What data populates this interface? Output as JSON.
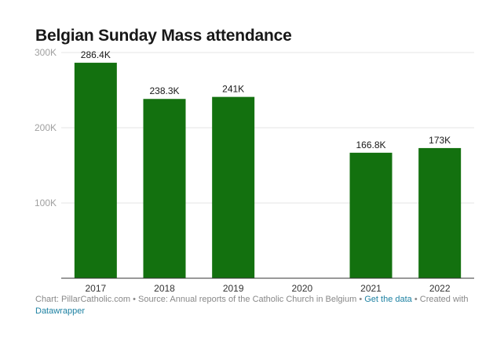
{
  "title": "Belgian Sunday Mass attendance",
  "chart_data": {
    "type": "bar",
    "categories": [
      "2017",
      "2018",
      "2019",
      "2020",
      "2021",
      "2022"
    ],
    "values": [
      286400,
      238300,
      241000,
      null,
      166800,
      173000
    ],
    "data_labels": [
      "286.4K",
      "238.3K",
      "241K",
      "",
      "166.8K",
      "173K"
    ],
    "ylim": [
      0,
      300000
    ],
    "yticks": [
      100000,
      200000,
      300000
    ],
    "ytick_labels": [
      "100K",
      "200K",
      "300K"
    ],
    "grid": true,
    "legend": "none",
    "bar_color": "#13710f"
  },
  "footer": {
    "chart_credit": "Chart: PillarCatholic.com",
    "separator": "•",
    "source": "Source: Annual reports of the Catholic Church in Belgium",
    "data_link": "Get the data",
    "created_with": "Created with",
    "tool": "Datawrapper"
  }
}
